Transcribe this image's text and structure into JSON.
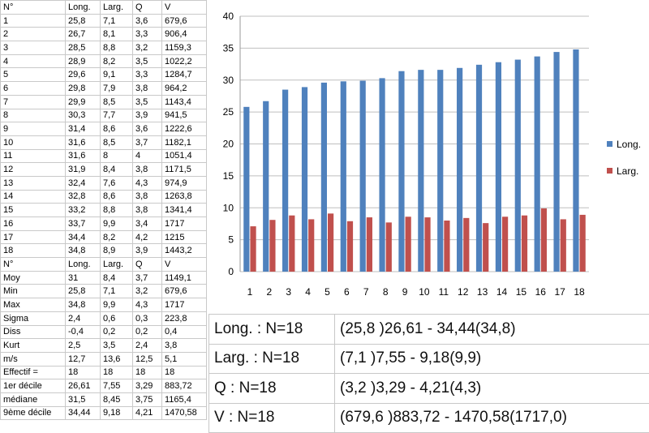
{
  "table": {
    "header": [
      "N°",
      "Long.",
      "Larg.",
      "Q",
      "V"
    ],
    "rows": [
      [
        "1",
        "25,8",
        "7,1",
        "3,6",
        "679,6"
      ],
      [
        "2",
        "26,7",
        "8,1",
        "3,3",
        "906,4"
      ],
      [
        "3",
        "28,5",
        "8,8",
        "3,2",
        "1159,3"
      ],
      [
        "4",
        "28,9",
        "8,2",
        "3,5",
        "1022,2"
      ],
      [
        "5",
        "29,6",
        "9,1",
        "3,3",
        "1284,7"
      ],
      [
        "6",
        "29,8",
        "7,9",
        "3,8",
        "964,2"
      ],
      [
        "7",
        "29,9",
        "8,5",
        "3,5",
        "1143,4"
      ],
      [
        "8",
        "30,3",
        "7,7",
        "3,9",
        "941,5"
      ],
      [
        "9",
        "31,4",
        "8,6",
        "3,6",
        "1222,6"
      ],
      [
        "10",
        "31,6",
        "8,5",
        "3,7",
        "1182,1"
      ],
      [
        "11",
        "31,6",
        "8",
        "4",
        "1051,4"
      ],
      [
        "12",
        "31,9",
        "8,4",
        "3,8",
        "1171,5"
      ],
      [
        "13",
        "32,4",
        "7,6",
        "4,3",
        "974,9"
      ],
      [
        "14",
        "32,8",
        "8,6",
        "3,8",
        "1263,8"
      ],
      [
        "15",
        "33,2",
        "8,8",
        "3,8",
        "1341,4"
      ],
      [
        "16",
        "33,7",
        "9,9",
        "3,4",
        "1717"
      ],
      [
        "17",
        "34,4",
        "8,2",
        "4,2",
        "1215"
      ],
      [
        "18",
        "34,8",
        "8,9",
        "3,9",
        "1443,2"
      ]
    ],
    "stats_header": [
      "N°",
      "Long.",
      "Larg.",
      "Q",
      "V"
    ],
    "stats": [
      [
        "Moy",
        "31",
        "8,4",
        "3,7",
        "1149,1"
      ],
      [
        "Min",
        "25,8",
        "7,1",
        "3,2",
        "679,6"
      ],
      [
        "Max",
        "34,8",
        "9,9",
        "4,3",
        "1717"
      ],
      [
        "Sigma",
        "2,4",
        "0,6",
        "0,3",
        "223,8"
      ],
      [
        "Diss",
        "-0,4",
        "0,2",
        "0,2",
        "0,4"
      ],
      [
        "Kurt",
        "2,5",
        "3,5",
        "2,4",
        "3,8"
      ],
      [
        "m/s",
        "12,7",
        "13,6",
        "12,5",
        "5,1"
      ],
      [
        "Effectif =",
        "18",
        "18",
        "18",
        "18"
      ],
      [
        "1er décile",
        "26,61",
        "7,55",
        "3,29",
        "883,72"
      ],
      [
        "médiane",
        "31,5",
        "8,45",
        "3,75",
        "1165,4"
      ],
      [
        "9ème décile",
        "34,44",
        "9,18",
        "4,21",
        "1470,58"
      ]
    ]
  },
  "chart_data": {
    "type": "bar",
    "categories": [
      "1",
      "2",
      "3",
      "4",
      "5",
      "6",
      "7",
      "8",
      "9",
      "10",
      "11",
      "12",
      "13",
      "14",
      "15",
      "16",
      "17",
      "18"
    ],
    "series": [
      {
        "name": "Long.",
        "color": "#4f81bd",
        "values": [
          25.8,
          26.7,
          28.5,
          28.9,
          29.6,
          29.8,
          29.9,
          30.3,
          31.4,
          31.6,
          31.6,
          31.9,
          32.4,
          32.8,
          33.2,
          33.7,
          34.4,
          34.8
        ]
      },
      {
        "name": "Larg.",
        "color": "#c0504d",
        "values": [
          7.1,
          8.1,
          8.8,
          8.2,
          9.1,
          7.9,
          8.5,
          7.7,
          8.6,
          8.5,
          8,
          8.4,
          7.6,
          8.6,
          8.8,
          9.9,
          8.2,
          8.9
        ]
      }
    ],
    "ylim": [
      0,
      40
    ],
    "yticks": [
      "0",
      "5",
      "10",
      "15",
      "20",
      "25",
      "30",
      "35",
      "40"
    ],
    "grid": true,
    "legend": "right"
  },
  "summary": [
    {
      "label": "Long. : N=18",
      "range": "(25,8 )26,61 - 34,44(34,8)"
    },
    {
      "label": "Larg. : N=18",
      "range": "(7,1 )7,55 - 9,18(9,9)"
    },
    {
      "label": "Q : N=18",
      "range": "(3,2 )3,29 - 4,21(4,3)"
    },
    {
      "label": "V : N=18",
      "range": "(679,6 )883,72 - 1470,58(1717,0)"
    }
  ]
}
